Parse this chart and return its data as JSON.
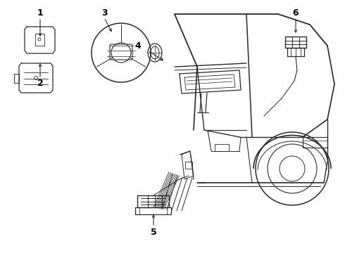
{
  "background_color": "#ffffff",
  "line_color": "#2a2a2a",
  "label_color": "#000000",
  "figsize": [
    4.9,
    3.6
  ],
  "dpi": 100,
  "line_width": 0.8
}
